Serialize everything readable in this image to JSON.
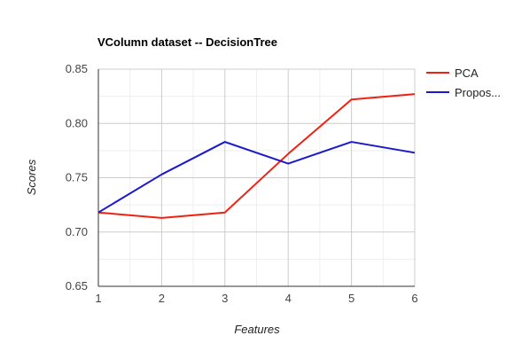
{
  "chart_data": {
    "type": "line",
    "title": "VColumn dataset -- DecisionTree",
    "xlabel": "Features",
    "ylabel": "Scores",
    "x": [
      1,
      2,
      3,
      4,
      5,
      6
    ],
    "x_tick_labels": [
      "1",
      "2",
      "3",
      "4",
      "5",
      "6"
    ],
    "xlim": [
      1,
      6
    ],
    "ylim": [
      0.65,
      0.85
    ],
    "y_ticks": [
      0.65,
      0.7,
      0.75,
      0.8,
      0.85
    ],
    "y_tick_labels": [
      "0.65",
      "0.70",
      "0.75",
      "0.80",
      "0.85"
    ],
    "grid": true,
    "legend_position": "right",
    "series": [
      {
        "name": "PCA",
        "color": "#ee2211",
        "values": [
          0.718,
          0.713,
          0.718,
          0.772,
          0.822,
          0.827
        ]
      },
      {
        "name": "Propos...",
        "color": "#1a1acc",
        "values": [
          0.718,
          0.753,
          0.783,
          0.763,
          0.783,
          0.773
        ]
      }
    ]
  }
}
